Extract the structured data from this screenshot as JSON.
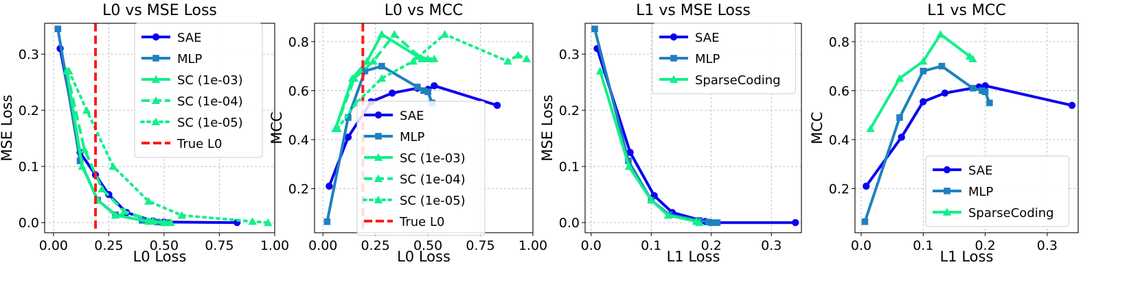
{
  "colors": {
    "SAE": "#0a00f0",
    "MLP": "#1f80c0",
    "SC": "#11f08a",
    "TrueL0": "#ff1a1a"
  },
  "chart_data": [
    {
      "type": "line",
      "title": "L0 vs MSE Loss",
      "xlabel": "L0 Loss",
      "ylabel": "MSE Loss",
      "xlim": [
        -0.04,
        1.0
      ],
      "ylim": [
        -0.018,
        0.355
      ],
      "xticks": [
        0.0,
        0.25,
        0.5,
        0.75,
        1.0
      ],
      "xtick_labels": [
        "0.00",
        "0.25",
        "0.50",
        "0.75",
        "1.00"
      ],
      "yticks": [
        0.0,
        0.1,
        0.2,
        0.3
      ],
      "ytick_labels": [
        "0.0",
        "0.1",
        "0.2",
        "0.3"
      ],
      "grid": true,
      "legend": "upper right",
      "vline": {
        "x": 0.19,
        "name": "True L0",
        "color_key": "TrueL0"
      },
      "series": [
        {
          "name": "SAE",
          "color_key": "SAE",
          "marker": "circle",
          "dash": "solid",
          "x": [
            0.03,
            0.12,
            0.19,
            0.25,
            0.33,
            0.45,
            0.5,
            0.83
          ],
          "y": [
            0.31,
            0.125,
            0.085,
            0.05,
            0.018,
            0.003,
            0.001,
            0.0
          ]
        },
        {
          "name": "MLP",
          "color_key": "MLP",
          "marker": "square",
          "dash": "solid",
          "x": [
            0.02,
            0.12,
            0.2,
            0.28,
            0.4,
            0.47,
            0.52
          ],
          "y": [
            0.345,
            0.11,
            0.04,
            0.014,
            0.004,
            0.001,
            0.0
          ]
        },
        {
          "name": "SC (1e-03)",
          "color_key": "SC",
          "marker": "triangle",
          "dash": "solid",
          "x": [
            0.06,
            0.13,
            0.2,
            0.28,
            0.43,
            0.5
          ],
          "y": [
            0.27,
            0.1,
            0.04,
            0.013,
            0.002,
            0.0
          ]
        },
        {
          "name": "SC (1e-04)",
          "color_key": "SC",
          "marker": "triangle",
          "dash": "dashed",
          "x": [
            0.06,
            0.14,
            0.22,
            0.32,
            0.45,
            0.53
          ],
          "y": [
            0.27,
            0.13,
            0.06,
            0.02,
            0.003,
            0.0
          ]
        },
        {
          "name": "SC (1e-05)",
          "color_key": "SC",
          "marker": "triangle",
          "dash": "dotted",
          "x": [
            0.07,
            0.15,
            0.27,
            0.43,
            0.58,
            0.9,
            0.97
          ],
          "y": [
            0.27,
            0.2,
            0.1,
            0.038,
            0.013,
            0.002,
            0.0
          ]
        }
      ],
      "legend_entries": [
        "SAE",
        "MLP",
        "SC (1e-03)",
        "SC (1e-04)",
        "SC (1e-05)",
        "True L0"
      ]
    },
    {
      "type": "line",
      "title": "L0 vs MCC",
      "xlabel": "L0 Loss",
      "ylabel": "MCC",
      "xlim": [
        -0.04,
        1.0
      ],
      "ylim": [
        0.02,
        0.875
      ],
      "xticks": [
        0.0,
        0.25,
        0.5,
        0.75,
        1.0
      ],
      "xtick_labels": [
        "0.00",
        "0.25",
        "0.50",
        "0.75",
        "1.00"
      ],
      "yticks": [
        0.2,
        0.4,
        0.6,
        0.8
      ],
      "ytick_labels": [
        "0.2",
        "0.4",
        "0.6",
        "0.8"
      ],
      "grid": true,
      "legend": "lower right",
      "vline": {
        "x": 0.19,
        "name": "True L0",
        "color_key": "TrueL0"
      },
      "series": [
        {
          "name": "SAE",
          "color_key": "SAE",
          "marker": "circle",
          "dash": "solid",
          "x": [
            0.03,
            0.12,
            0.23,
            0.33,
            0.45,
            0.5,
            0.53,
            0.83
          ],
          "y": [
            0.21,
            0.41,
            0.555,
            0.59,
            0.61,
            0.605,
            0.62,
            0.54
          ]
        },
        {
          "name": "MLP",
          "color_key": "MLP",
          "marker": "square",
          "dash": "solid",
          "x": [
            0.02,
            0.12,
            0.2,
            0.28,
            0.45,
            0.48,
            0.5,
            0.52
          ],
          "y": [
            0.065,
            0.49,
            0.68,
            0.7,
            0.615,
            0.6,
            0.595,
            0.55
          ]
        },
        {
          "name": "SC (1e-03)",
          "color_key": "SC",
          "marker": "triangle",
          "dash": "solid",
          "x": [
            0.06,
            0.14,
            0.21,
            0.28,
            0.45,
            0.5
          ],
          "y": [
            0.445,
            0.65,
            0.72,
            0.83,
            0.74,
            0.73
          ]
        },
        {
          "name": "SC (1e-04)",
          "color_key": "SC",
          "marker": "triangle",
          "dash": "dashed",
          "x": [
            0.06,
            0.15,
            0.24,
            0.34,
            0.47,
            0.53
          ],
          "y": [
            0.445,
            0.65,
            0.72,
            0.83,
            0.73,
            0.73
          ]
        },
        {
          "name": "SC (1e-05)",
          "color_key": "SC",
          "marker": "triangle",
          "dash": "dotted",
          "x": [
            0.07,
            0.16,
            0.28,
            0.43,
            0.58,
            0.88,
            0.93,
            0.97
          ],
          "y": [
            0.445,
            0.55,
            0.65,
            0.72,
            0.83,
            0.72,
            0.745,
            0.73
          ]
        }
      ],
      "legend_entries": [
        "SAE",
        "MLP",
        "SC (1e-03)",
        "SC (1e-04)",
        "SC (1e-05)",
        "True L0"
      ]
    },
    {
      "type": "line",
      "title": "L1 vs MSE Loss",
      "xlabel": "L1 Loss",
      "ylabel": "MSE Loss",
      "xlim": [
        -0.01,
        0.35
      ],
      "ylim": [
        -0.018,
        0.355
      ],
      "xticks": [
        0.0,
        0.1,
        0.2,
        0.3
      ],
      "xtick_labels": [
        "0.0",
        "0.1",
        "0.2",
        "0.3"
      ],
      "yticks": [
        0.0,
        0.1,
        0.2,
        0.3
      ],
      "ytick_labels": [
        "0.0",
        "0.1",
        "0.2",
        "0.3"
      ],
      "grid": true,
      "legend": "upper right",
      "series": [
        {
          "name": "SAE",
          "color_key": "SAE",
          "marker": "circle",
          "dash": "solid",
          "x": [
            0.01,
            0.065,
            0.105,
            0.135,
            0.19,
            0.2,
            0.34
          ],
          "y": [
            0.31,
            0.125,
            0.048,
            0.018,
            0.002,
            0.0,
            0.0
          ]
        },
        {
          "name": "MLP",
          "color_key": "MLP",
          "marker": "square",
          "dash": "solid",
          "x": [
            0.006,
            0.062,
            0.1,
            0.13,
            0.18,
            0.195,
            0.2,
            0.21
          ],
          "y": [
            0.345,
            0.11,
            0.04,
            0.014,
            0.004,
            0.001,
            0.0,
            0.0
          ]
        },
        {
          "name": "SparseCoding",
          "color_key": "SC",
          "marker": "triangle",
          "dash": "solid",
          "x": [
            0.015,
            0.063,
            0.1,
            0.128,
            0.175,
            0.18
          ],
          "y": [
            0.27,
            0.1,
            0.04,
            0.013,
            0.002,
            0.0
          ]
        }
      ],
      "legend_entries": [
        "SAE",
        "MLP",
        "SparseCoding"
      ]
    },
    {
      "type": "line",
      "title": "L1 vs MCC",
      "xlabel": "L1 Loss",
      "ylabel": "MCC",
      "xlim": [
        -0.01,
        0.35
      ],
      "ylim": [
        0.02,
        0.875
      ],
      "xticks": [
        0.0,
        0.1,
        0.2,
        0.3
      ],
      "xtick_labels": [
        "0.0",
        "0.1",
        "0.2",
        "0.3"
      ],
      "yticks": [
        0.2,
        0.4,
        0.6,
        0.8
      ],
      "ytick_labels": [
        "0.2",
        "0.4",
        "0.6",
        "0.8"
      ],
      "grid": true,
      "legend": "lower right",
      "series": [
        {
          "name": "SAE",
          "color_key": "SAE",
          "marker": "circle",
          "dash": "solid",
          "x": [
            0.008,
            0.065,
            0.1,
            0.135,
            0.19,
            0.2,
            0.34
          ],
          "y": [
            0.21,
            0.41,
            0.555,
            0.59,
            0.615,
            0.62,
            0.54
          ]
        },
        {
          "name": "MLP",
          "color_key": "MLP",
          "marker": "square",
          "dash": "solid",
          "x": [
            0.006,
            0.062,
            0.1,
            0.13,
            0.18,
            0.195,
            0.2,
            0.207
          ],
          "y": [
            0.065,
            0.49,
            0.68,
            0.7,
            0.61,
            0.6,
            0.595,
            0.55
          ]
        },
        {
          "name": "SparseCoding",
          "color_key": "SC",
          "marker": "triangle",
          "dash": "solid",
          "x": [
            0.015,
            0.062,
            0.1,
            0.128,
            0.175,
            0.18
          ],
          "y": [
            0.445,
            0.65,
            0.72,
            0.83,
            0.74,
            0.73
          ]
        }
      ],
      "legend_entries": [
        "SAE",
        "MLP",
        "SparseCoding"
      ]
    }
  ]
}
